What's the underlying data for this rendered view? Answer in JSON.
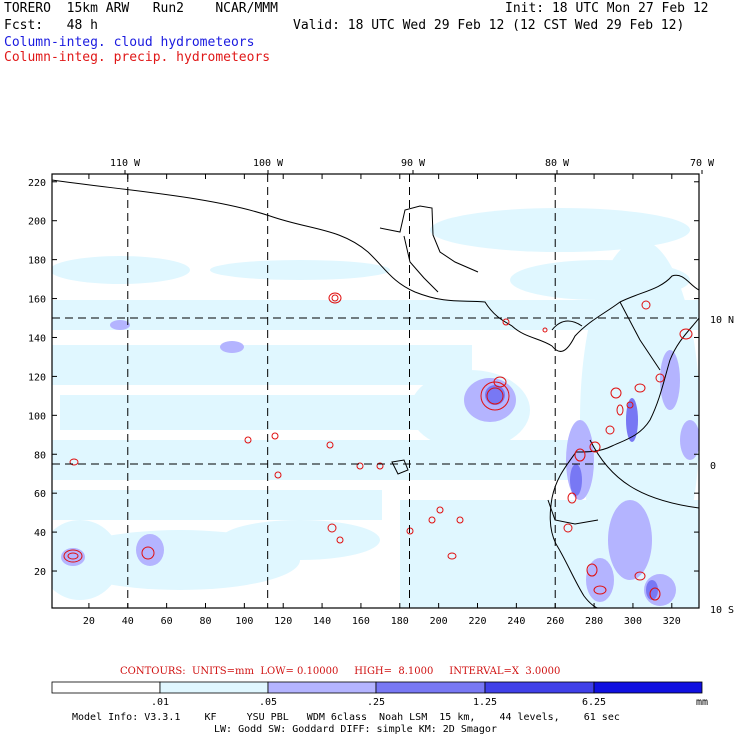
{
  "header": {
    "model_line": "TORERO  15km ARW   Run2    NCAR/MMM",
    "init_line": "Init: 18 UTC Mon 27 Feb 12",
    "fcst_line": "Fcst:   48 h",
    "valid_line": "Valid: 18 UTC Wed 29 Feb 12 (12 CST Wed 29 Feb 12)",
    "field_cloud": "Column-integ. cloud hydrometeors",
    "field_precip": "Column-integ. precip. hydrometeors"
  },
  "map": {
    "top_lon_labels": [
      "110 W",
      "100 W",
      "90 W",
      "80 W",
      "70 W"
    ],
    "right_lat_labels": [
      "10 N",
      "0",
      "10 S"
    ],
    "x_tick_labels": [
      "20",
      "40",
      "60",
      "80",
      "100",
      "120",
      "140",
      "160",
      "180",
      "200",
      "220",
      "240",
      "260",
      "280",
      "300",
      "320"
    ],
    "y_tick_labels": [
      "20",
      "40",
      "60",
      "80",
      "100",
      "120",
      "140",
      "160",
      "180",
      "200",
      "220"
    ],
    "x_grid_lines": [
      40,
      112,
      185,
      260
    ],
    "y_grid_lines": [
      75,
      150
    ],
    "x_range": [
      1,
      334
    ],
    "y_range": [
      1,
      224
    ],
    "colors": {
      "shade_1": "#e0f7ff",
      "shade_2": "#b4b4ff",
      "shade_3": "#7070f0",
      "contour": "#e01010",
      "coast": "#000000"
    }
  },
  "legend": {
    "contours_text": "CONTOURS:  UNITS=mm  LOW= 0.10000     HIGH=  8.1000     INTERVAL=X  3.0000",
    "colorbar_values": [
      ".01",
      ".05",
      ".25",
      "1.25",
      "6.25"
    ],
    "colorbar_unit": "mm",
    "colorbar_colors": [
      "#ffffff",
      "#e0f7ff",
      "#b4b4ff",
      "#7878f4",
      "#4040e8",
      "#1010e0"
    ]
  },
  "model_info": {
    "line1": "Model Info: V3.3.1    KF     YSU PBL   WDM 6class  Noah LSM  15 km,    44 levels,    61 sec",
    "line2": "LW: Godd SW: Goddard DIFF: simple KM: 2D Smagor"
  }
}
